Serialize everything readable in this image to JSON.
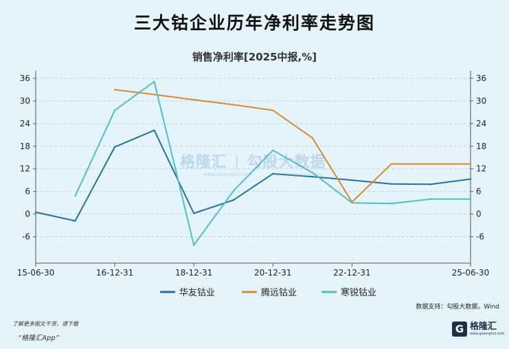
{
  "title": "三大钴企业历年净利率走势图",
  "subtitle": "销售净利率[2025中报,%]",
  "watermark": {
    "left_text": "格隆汇",
    "right_text": "勾股大数据",
    "left_url": "www.gelonghui.com",
    "right_url": "www.gogudata.com"
  },
  "source": "数据支持：勾股大数据，Wind",
  "footer": {
    "note": "了解更多图文干货，请下载",
    "app": "“格隆汇App”"
  },
  "logo": {
    "mark": "G",
    "name": "格隆汇",
    "url": "www.gelonghui.com"
  },
  "colors": {
    "background": "#e5f4fb",
    "grid": "#b9d3df",
    "axis": "#555555"
  },
  "chart_data": {
    "type": "line",
    "x": [
      "15-06-30",
      "16-06-30",
      "16-12-31",
      "17-06-30",
      "18-12-31",
      "19-06-30",
      "20-12-31",
      "21-06-30",
      "22-12-31",
      "23-06-30",
      "24-12-31",
      "25-06-30"
    ],
    "x_tick_labels": [
      "15-06-30",
      "16-12-31",
      "18-12-31",
      "20-12-31",
      "22-12-31",
      "25-06-30"
    ],
    "y_ticks": [
      -6,
      0,
      6,
      12,
      18,
      24,
      30,
      36
    ],
    "ylim": [
      -13,
      38
    ],
    "grid": true,
    "legend_position": "bottom",
    "series": [
      {
        "name": "华友钴业",
        "color": "#2271a6",
        "values": [
          0.5,
          -1.8,
          17.8,
          22.2,
          0.2,
          3.7,
          10.7,
          9.9,
          9.0,
          8.0,
          7.9,
          9.3
        ]
      },
      {
        "name": "腾远钴业",
        "color": "#d88a2a",
        "values": [
          null,
          null,
          33.0,
          31.7,
          30.3,
          29.0,
          27.5,
          20.2,
          3.2,
          13.3,
          13.3,
          13.3
        ]
      },
      {
        "name": "寒锐钴业",
        "color": "#4fbfbf",
        "values": [
          null,
          4.8,
          27.5,
          35.1,
          -8.2,
          6.1,
          16.9,
          11.0,
          3.0,
          2.8,
          4.0,
          4.0
        ]
      }
    ]
  }
}
